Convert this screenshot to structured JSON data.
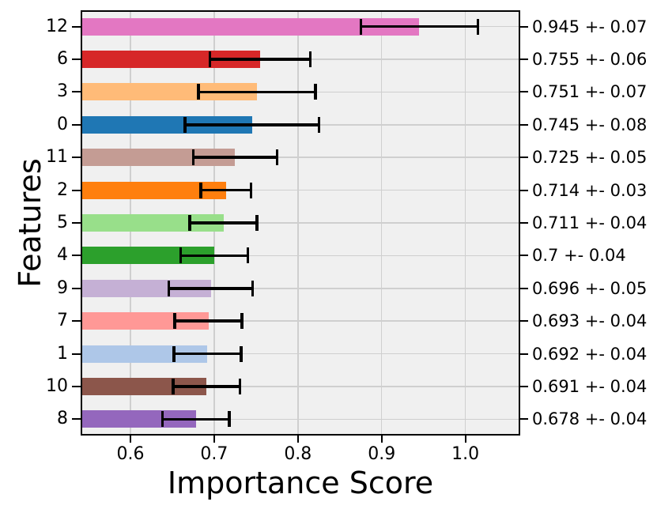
{
  "chart_data": {
    "type": "bar",
    "orientation": "horizontal",
    "title": "",
    "xlabel": "Importance Score",
    "ylabel": "Features",
    "categories": [
      "12",
      "6",
      "3",
      "0",
      "11",
      "2",
      "5",
      "4",
      "9",
      "7",
      "1",
      "10",
      "8"
    ],
    "series": [
      {
        "name": "importance_score",
        "values": [
          0.945,
          0.755,
          0.751,
          0.745,
          0.725,
          0.714,
          0.711,
          0.7,
          0.696,
          0.693,
          0.692,
          0.691,
          0.678
        ],
        "errors": [
          0.07,
          0.06,
          0.07,
          0.08,
          0.05,
          0.03,
          0.04,
          0.04,
          0.05,
          0.04,
          0.04,
          0.04,
          0.04
        ]
      }
    ],
    "right_axis_labels": [
      "0.945 +- 0.07",
      "0.755 +- 0.06",
      "0.751 +- 0.07",
      "0.745 +- 0.08",
      "0.725 +- 0.05",
      "0.714 +- 0.03",
      "0.711 +- 0.04",
      "0.7 +- 0.04",
      "0.696 +- 0.05",
      "0.693 +- 0.04",
      "0.692 +- 0.04",
      "0.691 +- 0.04",
      "0.678 +- 0.04"
    ],
    "bar_colors": [
      "#e377c2",
      "#d62728",
      "#ffbb78",
      "#1f77b4",
      "#c49c94",
      "#ff7f0e",
      "#98df8a",
      "#2ca02c",
      "#c5b0d5",
      "#ff9896",
      "#aec7e8",
      "#8c564b",
      "#9467bd"
    ],
    "x_tick_labels": [
      "0.6",
      "0.7",
      "0.8",
      "0.9",
      "1.0"
    ],
    "x_tick_values": [
      0.6,
      0.7,
      0.8,
      0.9,
      1.0
    ],
    "xlim": [
      0.5405,
      1.0655
    ],
    "grid": true,
    "legend": "none",
    "styles": {
      "figure_background": "#ffffff",
      "plot_background": "#f0f0f0",
      "grid_color": "#cfcfcf",
      "spine_color": "#000000",
      "errorbar_color": "#000000",
      "text_color": "#000000"
    }
  }
}
